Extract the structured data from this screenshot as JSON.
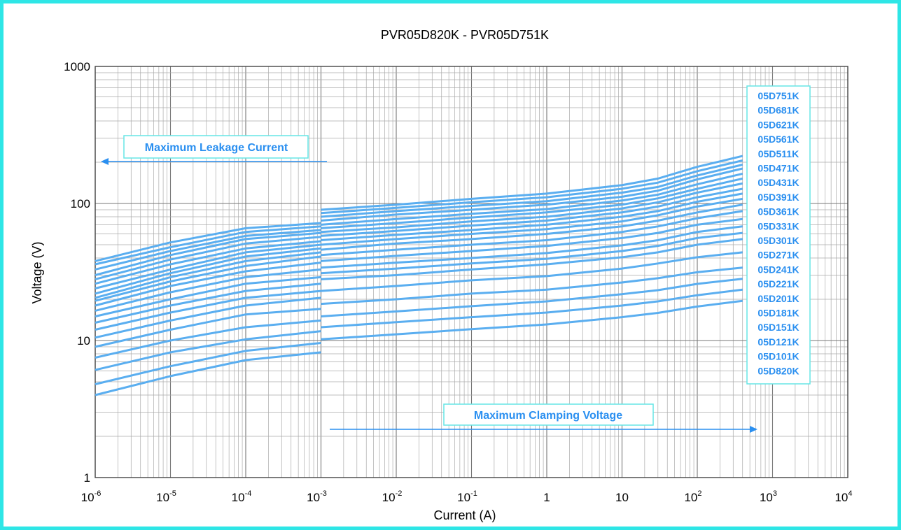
{
  "chart_data": {
    "type": "line",
    "title": "PVR05D820K - PVR05D751K",
    "xlabel": "Current (A)",
    "ylabel": "Voltage (V)",
    "xscale": "log",
    "yscale": "log",
    "xlim": [
      1e-06,
      10000
    ],
    "ylim": [
      1,
      1000
    ],
    "x_ticks": [
      {
        "base": "10",
        "exp": "-6"
      },
      {
        "base": "10",
        "exp": "-5"
      },
      {
        "base": "10",
        "exp": "-4"
      },
      {
        "base": "10",
        "exp": "-3"
      },
      {
        "base": "10",
        "exp": "-2"
      },
      {
        "base": "10",
        "exp": "-1"
      },
      {
        "base": "1",
        "exp": ""
      },
      {
        "base": "10",
        "exp": ""
      },
      {
        "base": "10",
        "exp": "2"
      },
      {
        "base": "10",
        "exp": "3"
      },
      {
        "base": "10",
        "exp": "4"
      }
    ],
    "y_ticks": [
      "1",
      "10",
      "100",
      "1000"
    ],
    "grid": true,
    "line_color": "#5aaef0",
    "legend_color": "#2a8ff0",
    "legend_position": "right",
    "legend": [
      "05D751K",
      "05D681K",
      "05D621K",
      "05D561K",
      "05D511K",
      "05D471K",
      "05D431K",
      "05D391K",
      "05D361K",
      "05D331K",
      "05D301K",
      "05D271K",
      "05D241K",
      "05D221K",
      "05D201K",
      "05D181K",
      "05D151K",
      "05D121K",
      "05D101K",
      "05D820K"
    ],
    "annotations": {
      "leakage": "Maximum Leakage Current",
      "clamping": "Maximum Clamping Voltage"
    },
    "leakage_x": [
      1e-06,
      1e-05,
      0.0001,
      0.001
    ],
    "clamping_x": [
      0.001,
      0.01,
      0.1,
      1,
      10,
      30,
      100,
      400
    ],
    "series": [
      {
        "name": "05D751K",
        "leakage": [
          38,
          52,
          66,
          72
        ],
        "clamping": [
          90,
          98,
          108,
          118,
          136,
          152,
          185,
          222
        ]
      },
      {
        "name": "05D681K",
        "leakage": [
          36,
          48,
          62,
          68
        ],
        "clamping": [
          85,
          93,
          102,
          111,
          128,
          142,
          172,
          206
        ]
      },
      {
        "name": "05D621K",
        "leakage": [
          33,
          45,
          58,
          64
        ],
        "clamping": [
          80,
          88,
          96,
          104,
          120,
          132,
          160,
          192
        ]
      },
      {
        "name": "05D561K",
        "leakage": [
          30,
          42,
          55,
          61
        ],
        "clamping": [
          75,
          83,
          90,
          98,
          112,
          124,
          150,
          180
        ]
      },
      {
        "name": "05D511K",
        "leakage": [
          28,
          39,
          51,
          57
        ],
        "clamping": [
          70,
          77,
          84,
          91,
          105,
          116,
          138,
          165
        ]
      },
      {
        "name": "05D471K",
        "leakage": [
          26,
          36,
          47,
          53
        ],
        "clamping": [
          66,
          72,
          79,
          86,
          98,
          109,
          128,
          152
        ]
      },
      {
        "name": "05D431K",
        "leakage": [
          24,
          33,
          44,
          50
        ],
        "clamping": [
          62,
          67,
          74,
          80,
          92,
          102,
          120,
          140
        ]
      },
      {
        "name": "05D391K",
        "leakage": [
          22,
          31,
          41,
          47
        ],
        "clamping": [
          58,
          63,
          69,
          75,
          86,
          95,
          111,
          128
        ]
      },
      {
        "name": "05D361K",
        "leakage": [
          20.5,
          29,
          38,
          44
        ],
        "clamping": [
          54,
          59,
          64,
          70,
          80,
          88,
          103,
          118
        ]
      },
      {
        "name": "05D331K",
        "leakage": [
          19.5,
          27,
          35,
          41
        ],
        "clamping": [
          50,
          55,
          60,
          65,
          74,
          82,
          95,
          108
        ]
      },
      {
        "name": "05D301K",
        "leakage": [
          18,
          25,
          32,
          37
        ],
        "clamping": [
          46,
          51,
          55,
          60,
          68,
          75,
          86,
          98
        ]
      },
      {
        "name": "05D271K",
        "leakage": [
          16.5,
          22.5,
          29,
          33
        ],
        "clamping": [
          42,
          46,
          50,
          54,
          62,
          68,
          78,
          88
        ]
      },
      {
        "name": "05D241K",
        "leakage": [
          15,
          20,
          26,
          29
        ],
        "clamping": [
          38,
          41.5,
          45,
          49,
          56,
          61,
          70,
          77
        ]
      },
      {
        "name": "05D221K",
        "leakage": [
          13.5,
          18,
          23,
          26
        ],
        "clamping": [
          34,
          37,
          40,
          43.5,
          49.5,
          54,
          62,
          68
        ]
      },
      {
        "name": "05D201K",
        "leakage": [
          12,
          16,
          20.5,
          23
        ],
        "clamping": [
          31,
          33.5,
          36.5,
          39.5,
          45,
          49,
          56,
          61
        ]
      },
      {
        "name": "05D181K",
        "leakage": [
          10.5,
          14,
          18,
          20.5
        ],
        "clamping": [
          28,
          30,
          33,
          36,
          40.5,
          44,
          50,
          55
        ]
      },
      {
        "name": "05D151K",
        "leakage": [
          9,
          12,
          15.5,
          17
        ],
        "clamping": [
          23,
          25,
          27.5,
          29.5,
          33.5,
          36.5,
          40.5,
          44
        ]
      },
      {
        "name": "05D121K",
        "leakage": [
          7.5,
          10,
          12.5,
          14
        ],
        "clamping": [
          18.5,
          20,
          22,
          23.5,
          26.5,
          28.5,
          31.5,
          34
        ]
      },
      {
        "name": "05D101K",
        "leakage": [
          6.1,
          8.2,
          10.2,
          11.7
        ],
        "clamping": [
          15,
          16.3,
          17.8,
          19.3,
          21.8,
          23.3,
          25.9,
          28.2
        ]
      },
      {
        "name": "05D820K",
        "leakage": [
          4.8,
          6.5,
          8.4,
          9.6
        ],
        "clamping": [
          12.5,
          13.6,
          14.8,
          16,
          18,
          19.3,
          21.4,
          23.5
        ]
      },
      {
        "name": "",
        "leakage": [
          4,
          5.5,
          7.2,
          8.2
        ],
        "clamping": [
          10.2,
          11.1,
          12.1,
          13.1,
          14.8,
          15.9,
          17.7,
          19.5
        ]
      }
    ]
  }
}
